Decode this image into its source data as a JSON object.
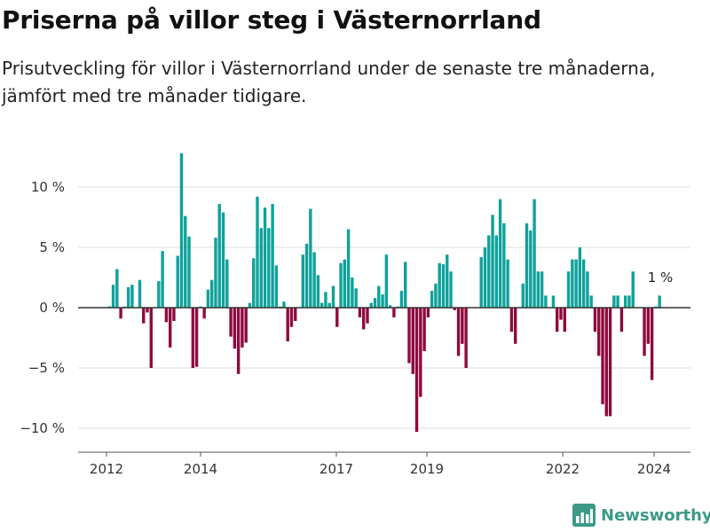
{
  "title": "Priserna på villor steg i Västernorrland",
  "subtitle": "Prisutveckling för villor i Västernorrland under de senaste tre månaderna, jämfört med tre månader tidigare.",
  "brand": {
    "name": "Newsworthy",
    "icon": "bar-chart-logo-icon"
  },
  "colors": {
    "positive": "#0fa29b",
    "negative": "#8f0a3e",
    "grid": "#dddddd",
    "zero": "#333333",
    "text": "#333333"
  },
  "chart_data": {
    "type": "bar",
    "title": "Priserna på villor steg i Västernorrland",
    "subtitle": "Prisutveckling för villor i Västernorrland under de senaste tre månaderna, jämfört med tre månader tidigare.",
    "xlabel": "",
    "ylabel": "",
    "unit": "%",
    "ylim": [
      -11.5,
      13
    ],
    "y_ticks": [
      {
        "value": 10,
        "label": "10 %"
      },
      {
        "value": 5,
        "label": "5 %"
      },
      {
        "value": 0,
        "label": "0 %"
      },
      {
        "value": -5,
        "label": "−5 %"
      },
      {
        "value": -10,
        "label": "−10 %"
      }
    ],
    "x_ticks": [
      "2012",
      "2014",
      "2017",
      "2019",
      "2022",
      "2024"
    ],
    "grid": true,
    "legend": "none",
    "last_value_label": "1 %",
    "series": [
      {
        "values": [
          0,
          0.1,
          1.9,
          3.2,
          -0.9,
          0.1,
          1.7,
          1.9,
          0,
          2.3,
          -1.3,
          -0.4,
          -5,
          0,
          2.2,
          4.7,
          -1.2,
          -3.3,
          -1.1,
          4.3,
          12.8,
          7.6,
          5.9,
          -5,
          -4.9,
          0.1,
          -0.9,
          1.5,
          2.3,
          5.8,
          8.6,
          7.9,
          4,
          -2.4,
          -3.4,
          -5.5,
          -3.3,
          -2.9,
          0.4,
          4.1,
          9.2,
          6.6,
          8.3,
          6.6,
          8.6,
          3.5,
          0.1,
          0.5,
          -2.8,
          -1.6,
          -1.1,
          0,
          4.4,
          5.3,
          8.2,
          4.6,
          2.7,
          0.4,
          1.3,
          0.4,
          1.8,
          -1.6,
          3.7,
          4.0,
          6.5,
          2.5,
          1.6,
          -0.8,
          -1.8,
          -1.3,
          0.4,
          0.8,
          1.8,
          1.1,
          4.4,
          0.2,
          -0.8,
          0.1,
          1.4,
          3.8,
          -4.6,
          -5.5,
          -10.3,
          -7.4,
          -3.6,
          -0.8,
          1.4,
          2.0,
          3.7,
          3.6,
          4.4,
          3.0,
          -0.2,
          -4,
          -3.0,
          -5.0,
          0,
          0,
          0,
          4.2,
          5.0,
          6.0,
          7.7,
          6.0,
          9.0,
          7.0,
          4.0,
          -2.0,
          -3.0,
          0,
          2.0,
          7.0,
          6.4,
          9.0,
          3.0,
          3.0,
          1.0,
          0,
          1.0,
          -2.0,
          -1.0,
          -2.0,
          3.0,
          4.0,
          4.0,
          5.0,
          4.0,
          3.0,
          1.0,
          -2.0,
          -4.0,
          -8.0,
          -9.0,
          -9.0,
          1.0,
          1.0,
          -2.0,
          1.0,
          1.0,
          3.0,
          0,
          0,
          -4.0,
          -3.0,
          -6.0,
          0.1,
          1.0
        ]
      }
    ]
  }
}
